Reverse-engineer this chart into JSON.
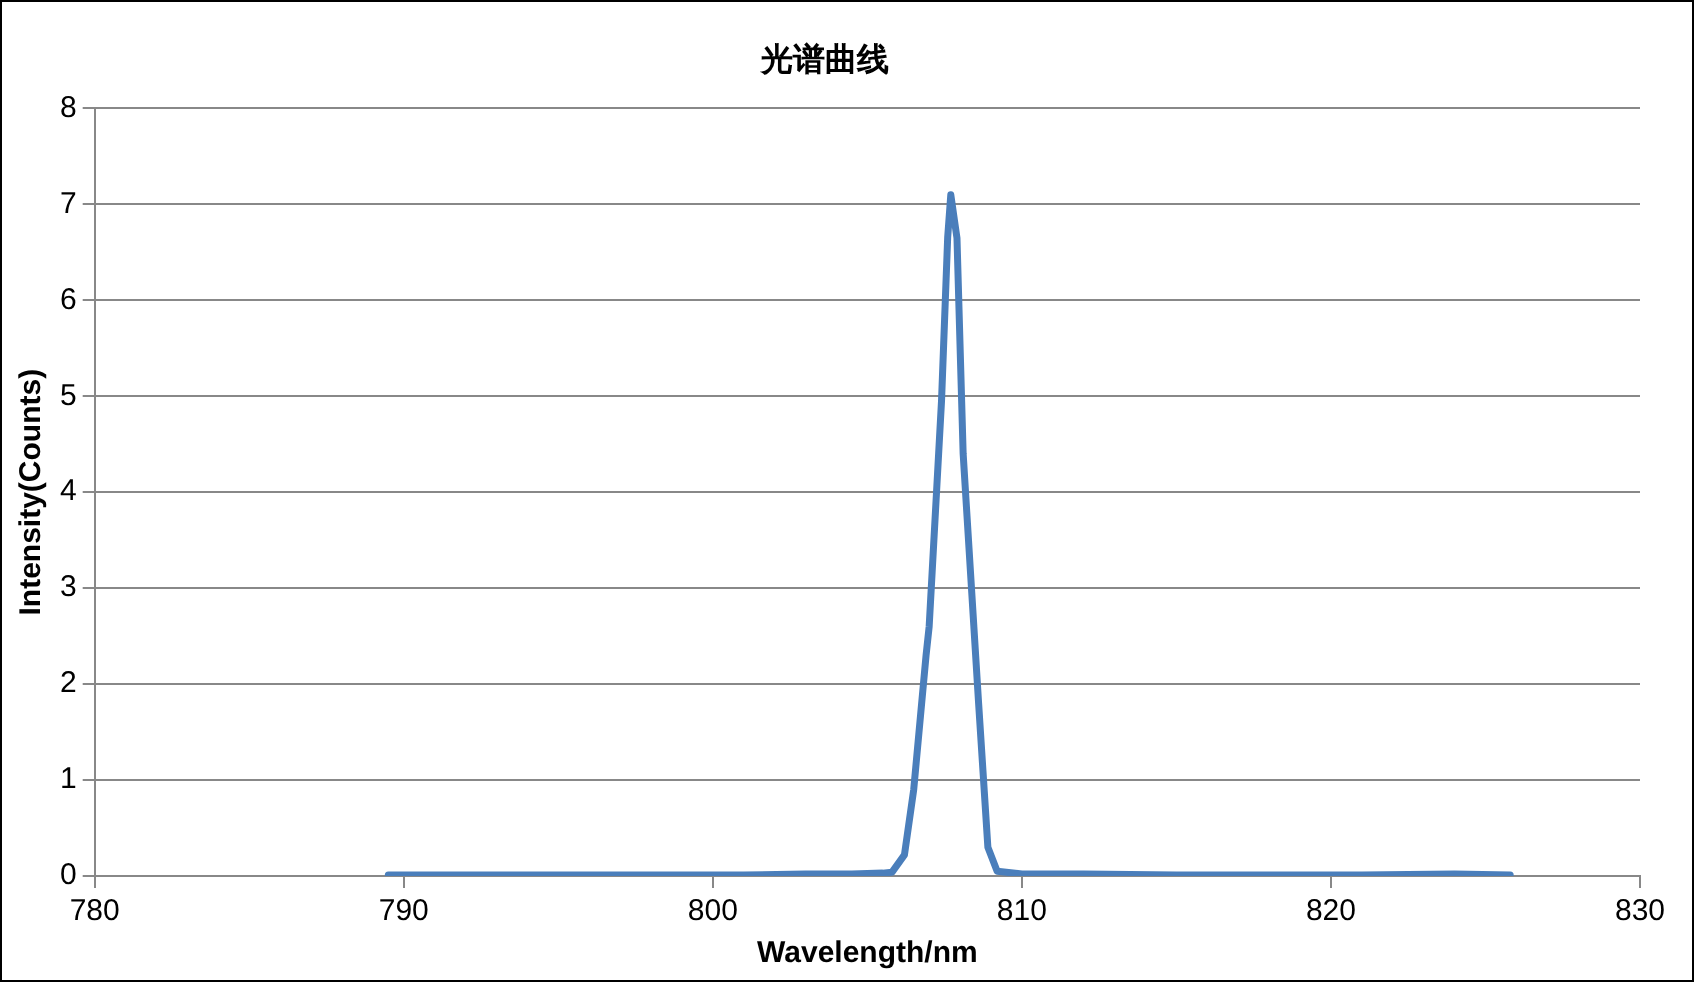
{
  "chart_data": {
    "type": "line",
    "title": "光谱曲线",
    "xlabel": "Wavelength/nm",
    "ylabel": "Intensity(Counts)",
    "x": [
      789.5,
      792,
      795,
      798,
      801,
      803,
      804.5,
      805.5,
      805.8,
      806.2,
      806.5,
      806.9,
      807.0,
      807.4,
      807.6,
      807.7,
      807.9,
      808.1,
      808.6,
      808.9,
      809.2,
      810,
      812,
      815,
      818,
      821,
      824,
      825.8
    ],
    "values": [
      0.01,
      0.01,
      0.01,
      0.01,
      0.01,
      0.02,
      0.02,
      0.03,
      0.04,
      0.22,
      0.9,
      2.3,
      2.6,
      4.95,
      6.66,
      7.1,
      6.65,
      4.4,
      1.8,
      0.3,
      0.05,
      0.02,
      0.02,
      0.01,
      0.01,
      0.01,
      0.02,
      0.01
    ],
    "color": "#4a7ebb",
    "xlim": [
      780,
      830
    ],
    "xticks": [
      780,
      790,
      800,
      810,
      820,
      830
    ],
    "ylim": [
      0,
      8
    ],
    "yticks": [
      0,
      1,
      2,
      3,
      4,
      5,
      6,
      7,
      8
    ],
    "grid": "y",
    "marker": "none",
    "line_style": "solid",
    "legend": false
  }
}
